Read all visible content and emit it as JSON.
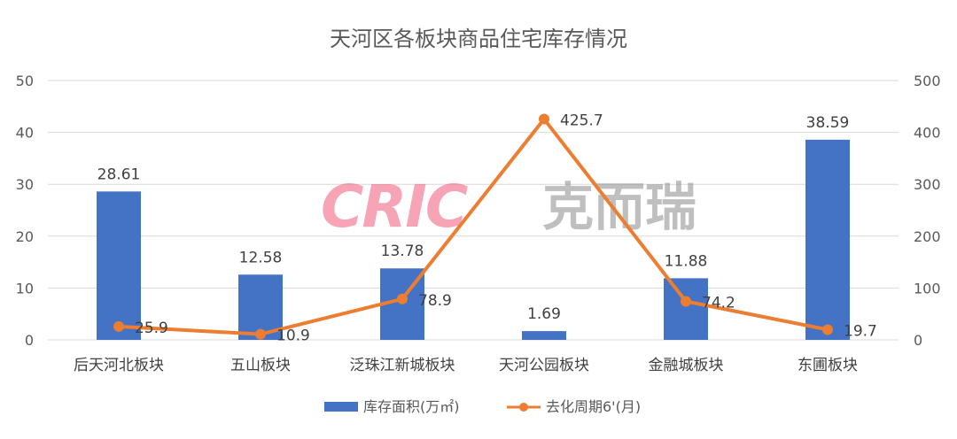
{
  "chart_data": {
    "type": "bar",
    "title": "天河区各板块商品住宅库存情况",
    "categories": [
      "后天河北板块",
      "五山板块",
      "泛珠江新城板块",
      "天河公园板块",
      "金融城板块",
      "东圃板块"
    ],
    "series": [
      {
        "name": "库存面积(万㎡)",
        "type": "bar",
        "axis": "left",
        "color": "#4472c4",
        "values": [
          28.61,
          12.58,
          13.78,
          1.69,
          11.88,
          38.59
        ],
        "labels": [
          "28.61",
          "12.58",
          "13.78",
          "1.69",
          "11.88",
          "38.59"
        ]
      },
      {
        "name": "去化周期6'(月)",
        "type": "line",
        "axis": "right",
        "color": "#ed7d31",
        "values": [
          25.9,
          10.9,
          78.9,
          425.7,
          74.2,
          19.7
        ],
        "labels": [
          "25.9",
          "10.9",
          "78.9",
          "425.7",
          "74.2",
          "19.7"
        ]
      }
    ],
    "y_left": {
      "min": 0,
      "max": 50,
      "ticks": [
        "0",
        "10",
        "20",
        "30",
        "40",
        "50"
      ]
    },
    "y_right": {
      "min": 0,
      "max": 500,
      "ticks": [
        "0",
        "100",
        "200",
        "300",
        "400",
        "500"
      ]
    },
    "grid": true,
    "legend": "bottom"
  },
  "watermark": {
    "text_latin": "CRIC",
    "text_cn": "克而瑞"
  }
}
